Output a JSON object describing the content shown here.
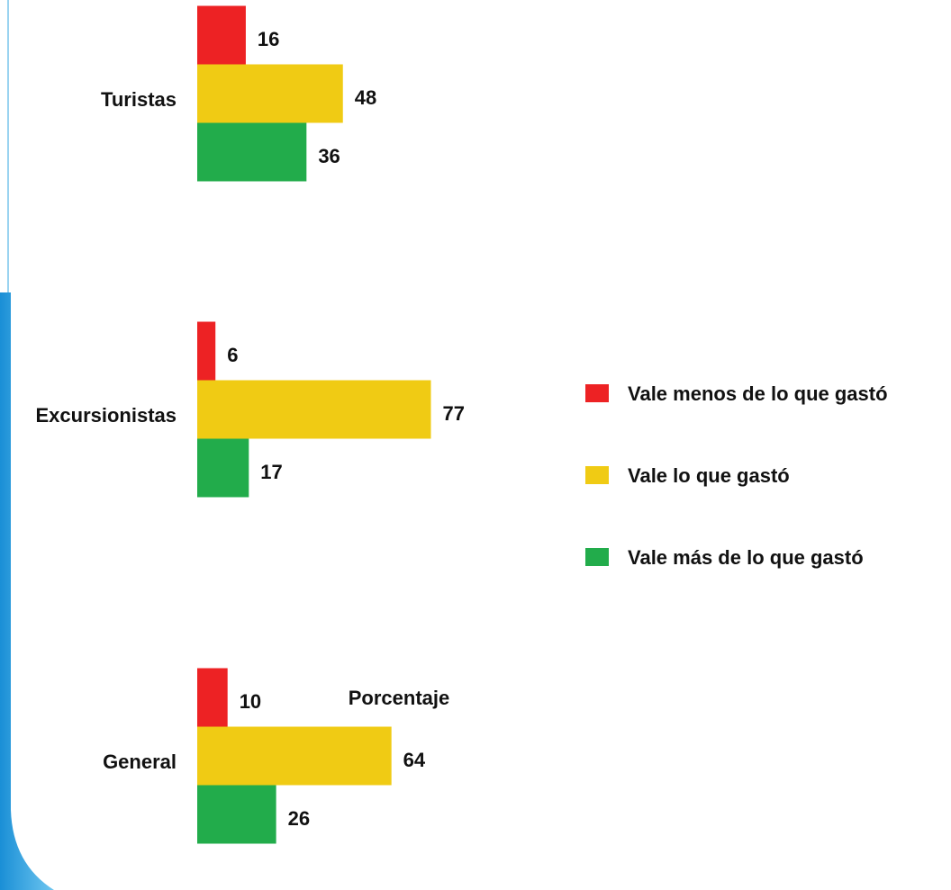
{
  "chart_data": {
    "type": "bar",
    "orientation": "horizontal",
    "categories": [
      "Turistas",
      "Excursionistas",
      "General"
    ],
    "series": [
      {
        "name": "Vale menos de lo que gastó",
        "color": "#ed2224",
        "values": [
          16,
          6,
          10
        ]
      },
      {
        "name": "Vale lo que gastó",
        "color": "#f0cb14",
        "values": [
          48,
          77,
          64
        ]
      },
      {
        "name": "Vale más de lo que gastó",
        "color": "#22ac4b",
        "values": [
          36,
          17,
          26
        ]
      }
    ],
    "xlim": [
      0,
      100
    ],
    "x_label": "Porcentaje",
    "legend": "right"
  }
}
